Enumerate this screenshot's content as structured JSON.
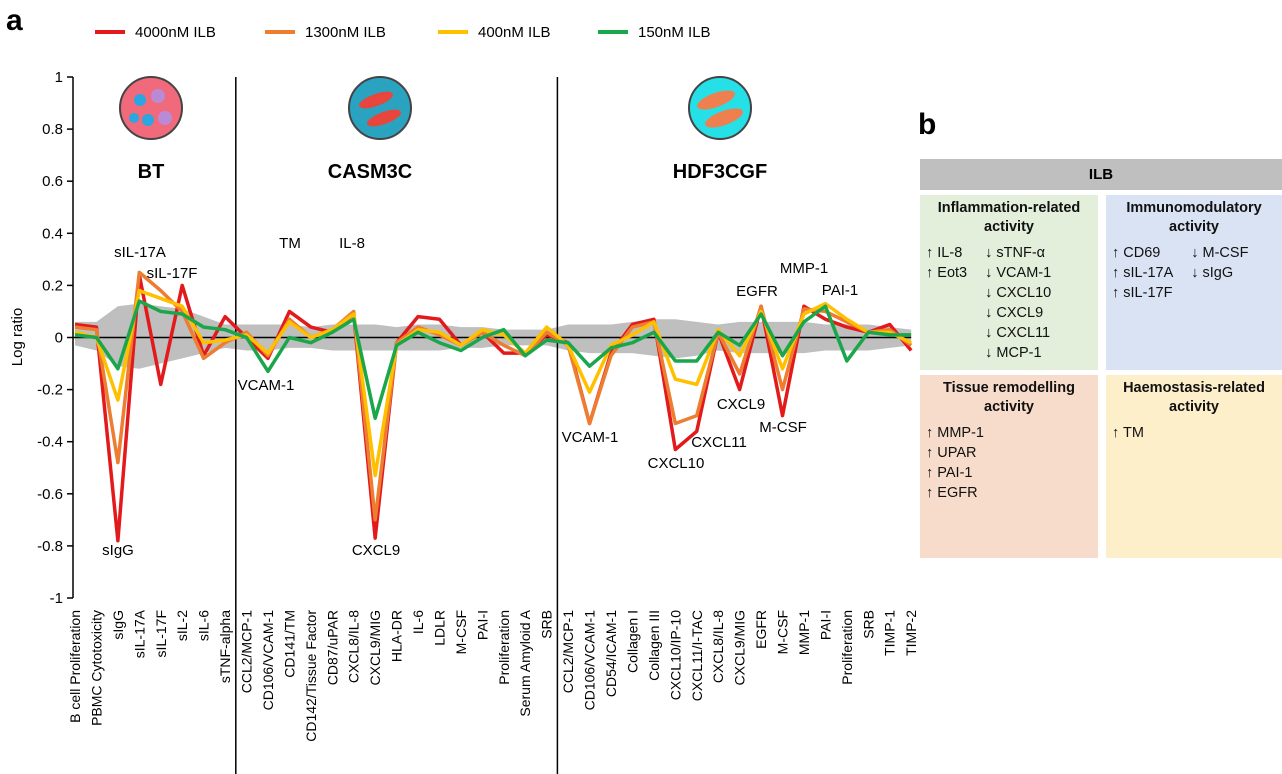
{
  "chart_data": {
    "type": "line",
    "panel_label": "a",
    "y_label": "Log ratio",
    "categories": [
      "B cell Proliferation",
      "PBMC Cytotoxicity",
      "sIgG",
      "sIL-17A",
      "sIL-17F",
      "sIL-2",
      "sIL-6",
      "sTNF-alpha",
      "CCL2/MCP-1",
      "CD106/VCAM-1",
      "CD141/TM",
      "CD142/Tissue Factor",
      "CD87/uPAR",
      "CXCL8/IL-8",
      "CXCL9/MIG",
      "HLA-DR",
      "IL-6",
      "LDLR",
      "M-CSF",
      "PAI-I",
      "Proliferation",
      "Serum Amyloid A",
      "SRB",
      "CCL2/MCP-1",
      "CD106/VCAM-1",
      "CD54/ICAM-1",
      "Collagen I",
      "Collagen III",
      "CXCL10/IP-10",
      "CXCL11/I-TAC",
      "CXCL8/IL-8",
      "CXCL9/MIG",
      "EGFR",
      "M-CSF",
      "MMP-1",
      "PAI-I",
      "Proliferation",
      "SRB",
      "TIMP-1",
      "TIMP-2"
    ],
    "sections": [
      "BT",
      "CASM3C",
      "HDF3CGF"
    ],
    "series": [
      {
        "name": "4000nM ILB",
        "color": "#e31a1c",
        "values": [
          0.05,
          0.04,
          -0.78,
          0.24,
          -0.18,
          0.2,
          -0.07,
          0.08,
          0.0,
          -0.08,
          0.1,
          0.04,
          0.02,
          0.09,
          -0.77,
          -0.02,
          0.08,
          0.07,
          -0.03,
          0.02,
          -0.06,
          -0.06,
          0.01,
          -0.02,
          -0.33,
          -0.06,
          0.05,
          0.07,
          -0.43,
          -0.36,
          0.02,
          -0.2,
          0.12,
          -0.3,
          0.12,
          0.07,
          0.04,
          0.02,
          0.05,
          -0.05
        ]
      },
      {
        "name": "1300nM ILB",
        "color": "#ed7d31",
        "values": [
          0.04,
          0.03,
          -0.48,
          0.25,
          0.18,
          0.1,
          -0.08,
          -0.02,
          0.02,
          -0.07,
          0.07,
          0.0,
          0.03,
          0.1,
          -0.7,
          -0.02,
          0.04,
          0.01,
          -0.03,
          0.02,
          -0.03,
          -0.07,
          0.02,
          -0.03,
          -0.33,
          -0.07,
          0.04,
          0.06,
          -0.33,
          -0.3,
          0.02,
          -0.14,
          0.12,
          -0.2,
          0.11,
          0.1,
          0.06,
          0.02,
          0.03,
          -0.03
        ]
      },
      {
        "name": "400nM ILB",
        "color": "#ffc000",
        "values": [
          0.02,
          0.0,
          -0.24,
          0.18,
          0.15,
          0.12,
          -0.02,
          -0.01,
          0.01,
          -0.06,
          0.06,
          0.0,
          0.03,
          0.09,
          -0.53,
          -0.03,
          0.03,
          0.02,
          -0.03,
          0.03,
          0.01,
          -0.06,
          0.04,
          -0.03,
          -0.21,
          -0.03,
          0.01,
          0.06,
          -0.16,
          -0.18,
          0.03,
          -0.07,
          0.1,
          -0.12,
          0.09,
          0.13,
          0.07,
          0.02,
          0.02,
          -0.02
        ]
      },
      {
        "name": "150nM ILB",
        "color": "#1aa64a",
        "values": [
          0.01,
          0.0,
          -0.12,
          0.14,
          0.1,
          0.09,
          0.04,
          0.03,
          0.0,
          -0.13,
          0.0,
          -0.02,
          0.02,
          0.07,
          -0.31,
          -0.03,
          0.02,
          -0.02,
          -0.05,
          0.0,
          0.03,
          -0.07,
          -0.01,
          -0.02,
          -0.11,
          -0.04,
          -0.02,
          0.02,
          -0.09,
          -0.09,
          0.02,
          -0.03,
          0.09,
          -0.07,
          0.06,
          0.12,
          -0.09,
          0.02,
          0.01,
          0.01
        ]
      }
    ],
    "envelope": {
      "color": "#bfbfbf",
      "upper": [
        0.06,
        0.06,
        0.12,
        0.13,
        0.12,
        0.11,
        0.08,
        0.05,
        0.05,
        0.05,
        0.05,
        0.04,
        0.05,
        0.05,
        0.05,
        0.04,
        0.05,
        0.05,
        0.04,
        0.04,
        0.03,
        0.03,
        0.03,
        0.05,
        0.05,
        0.05,
        0.06,
        0.07,
        0.07,
        0.06,
        0.05,
        0.06,
        0.06,
        0.06,
        0.06,
        0.05,
        0.05,
        0.05,
        0.04,
        0.03
      ],
      "lower": [
        -0.03,
        -0.05,
        -0.11,
        -0.12,
        -0.1,
        -0.08,
        -0.06,
        -0.04,
        -0.05,
        -0.05,
        -0.04,
        -0.04,
        -0.05,
        -0.05,
        -0.05,
        -0.05,
        -0.05,
        -0.05,
        -0.04,
        -0.04,
        -0.03,
        -0.03,
        -0.03,
        -0.05,
        -0.06,
        -0.06,
        -0.06,
        -0.07,
        -0.08,
        -0.07,
        -0.05,
        -0.06,
        -0.06,
        -0.06,
        -0.06,
        -0.05,
        -0.05,
        -0.05,
        -0.04,
        -0.03
      ]
    },
    "annotations": [
      "sIL-17A",
      "sIL-17F",
      "sIgG",
      "TM",
      "IL-8",
      "VCAM-1",
      "CXCL9",
      "VCAM-1",
      "CXCL10",
      "CXCL11",
      "CXCL9",
      "M-CSF",
      "EGFR",
      "MMP-1",
      "PAI-1"
    ],
    "ylim": [
      -1,
      1
    ],
    "yticks": [
      1,
      0.8,
      0.6,
      0.4,
      0.2,
      0,
      -0.2,
      -0.4,
      -0.6,
      -0.8,
      -1
    ]
  },
  "panel_b": {
    "panel_label": "b",
    "header": "ILB",
    "boxes": [
      {
        "title": "Inflammation-related activity",
        "color": "#e3eedb",
        "columns": [
          [
            "↑ IL-8",
            "↑ Eot3"
          ],
          [
            "↓ sTNF-α",
            "↓ VCAM-1",
            "↓ CXCL10",
            "↓ CXCL9",
            "↓ CXCL11",
            "↓ MCP-1"
          ]
        ]
      },
      {
        "title": "Immunomodulatory activity",
        "color": "#dae3f3",
        "columns": [
          [
            "↑ CD69",
            "↑ sIL-17A",
            "↑ sIL-17F"
          ],
          [
            "↓ M-CSF",
            "↓ sIgG"
          ]
        ]
      },
      {
        "title": "Tissue remodelling activity",
        "color": "#f8dccb",
        "columns": [
          [
            "↑ MMP-1",
            "↑ UPAR",
            "↑ PAI-1",
            "↑ EGFR"
          ]
        ]
      },
      {
        "title": "Haemostasis-related activity",
        "color": "#fdefc9",
        "columns": [
          [
            "↑ TM"
          ]
        ]
      }
    ]
  }
}
